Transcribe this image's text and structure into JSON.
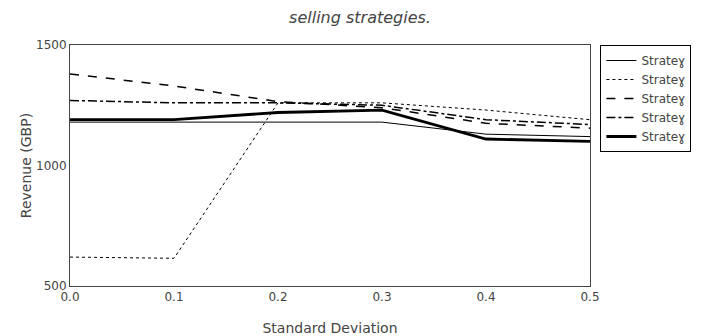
{
  "chart_data": {
    "type": "line",
    "title": "selling strategies.",
    "xlabel": "Standard Deviation",
    "ylabel": "Revenue (GBP)",
    "x": [
      0,
      0.1,
      0.2,
      0.3,
      0.4,
      0.5
    ],
    "series": [
      {
        "name": "Strateɣ",
        "color": "#000000",
        "line_style": "solid",
        "values": [
          1180,
          1180,
          1180,
          1180,
          1130,
          1120
        ]
      },
      {
        "name": "Strateɣ",
        "color": "#000000",
        "line_style": "dotted",
        "values": [
          620,
          615,
          1260,
          1260,
          1230,
          1190
        ]
      },
      {
        "name": "Strateɣ",
        "color": "#000000",
        "line_style": "dashed",
        "values": [
          1380,
          1330,
          1265,
          1240,
          1175,
          1155
        ]
      },
      {
        "name": "Strateɣ",
        "color": "#000000",
        "line_style": "dashdot",
        "values": [
          1270,
          1260,
          1260,
          1250,
          1190,
          1170
        ]
      },
      {
        "name": "Strateɣ",
        "color": "#000000",
        "line_style": "solid",
        "values": [
          1190,
          1190,
          1220,
          1230,
          1110,
          1100
        ]
      }
    ],
    "xlim": [
      0,
      0.5
    ],
    "ylim": [
      500,
      1500
    ],
    "xticks": [
      {
        "value": 0,
        "label": "0.0"
      },
      0.1,
      0.2,
      0.3,
      0.4,
      0.5
    ],
    "yticks": [
      500,
      1000,
      1500
    ],
    "grid": false,
    "legend": "right"
  }
}
